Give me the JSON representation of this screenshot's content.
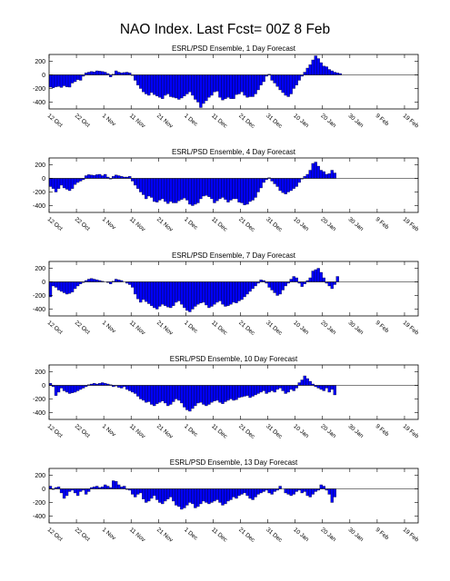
{
  "title": "NAO Index. Last Fcst= 00Z 8 Feb",
  "chart_data": [
    {
      "type": "bar",
      "title": "ESRL/PSD Ensemble, 1 Day Forecast",
      "ylim": [
        -500,
        300
      ],
      "yticks": [
        -400,
        -200,
        0,
        200
      ],
      "xticks": [
        "12 Oct",
        "22 Oct",
        "1 Nov",
        "11 Nov",
        "21 Nov",
        "1 Dec",
        "11 Dec",
        "21 Dec",
        "31 Dec",
        "10 Jan",
        "20 Jan",
        "30 Jan",
        "9 Feb",
        "19 Feb"
      ],
      "bar_color": "#0000ff",
      "values": [
        -180,
        -190,
        -175,
        -170,
        -185,
        -160,
        -175,
        -180,
        -120,
        -100,
        -70,
        -80,
        -20,
        30,
        40,
        50,
        45,
        60,
        55,
        50,
        40,
        20,
        -30,
        10,
        60,
        40,
        30,
        35,
        40,
        30,
        -10,
        -80,
        -150,
        -200,
        -250,
        -280,
        -300,
        -260,
        -290,
        -310,
        -330,
        -350,
        -300,
        -280,
        -320,
        -330,
        -340,
        -360,
        -340,
        -310,
        -280,
        -250,
        -300,
        -360,
        -400,
        -480,
        -420,
        -380,
        -330,
        -300,
        -250,
        -240,
        -330,
        -370,
        -350,
        -330,
        -350,
        -350,
        -290,
        -280,
        -250,
        -300,
        -330,
        -320,
        -320,
        -280,
        -220,
        -150,
        -100,
        -20,
        10,
        -80,
        -120,
        -170,
        -220,
        -260,
        -300,
        -320,
        -280,
        -200,
        -150,
        -80,
        -20,
        40,
        100,
        150,
        220,
        280,
        240,
        180,
        130,
        120,
        80,
        60,
        40,
        30,
        20
      ],
      "zero_line": true
    },
    {
      "type": "bar",
      "title": "ESRL/PSD Ensemble, 4 Day Forecast",
      "ylim": [
        -500,
        300
      ],
      "yticks": [
        -400,
        -200,
        0,
        200
      ],
      "xticks": [
        "12 Oct",
        "22 Oct",
        "1 Nov",
        "11 Nov",
        "21 Nov",
        "1 Dec",
        "11 Dec",
        "21 Dec",
        "31 Dec",
        "10 Jan",
        "20 Jan",
        "30 Jan",
        "9 Feb",
        "19 Feb"
      ],
      "bar_color": "#0000ff",
      "values": [
        -120,
        -150,
        -200,
        -150,
        -100,
        -140,
        -160,
        -180,
        -150,
        -90,
        -60,
        -40,
        -20,
        40,
        55,
        50,
        45,
        55,
        60,
        40,
        60,
        20,
        -10,
        30,
        50,
        40,
        30,
        20,
        20,
        30,
        -40,
        -100,
        -150,
        -200,
        -240,
        -300,
        -260,
        -280,
        -340,
        -350,
        -320,
        -300,
        -340,
        -370,
        -340,
        -360,
        -360,
        -330,
        -310,
        -290,
        -320,
        -380,
        -400,
        -380,
        -360,
        -300,
        -260,
        -250,
        -270,
        -300,
        -360,
        -330,
        -300,
        -280,
        -310,
        -350,
        -320,
        -300,
        -300,
        -350,
        -360,
        -390,
        -380,
        -340,
        -320,
        -280,
        -200,
        -140,
        -60,
        -20,
        10,
        -40,
        -80,
        -120,
        -180,
        -210,
        -230,
        -200,
        -180,
        -150,
        -120,
        -60,
        -10,
        30,
        60,
        120,
        220,
        240,
        180,
        120,
        100,
        60,
        70,
        120,
        80
      ]
    },
    {
      "type": "bar",
      "title": "ESRL/PSD Ensemble, 7 Day Forecast",
      "ylim": [
        -500,
        300
      ],
      "yticks": [
        -400,
        -200,
        0,
        200
      ],
      "xticks": [
        "12 Oct",
        "22 Oct",
        "1 Nov",
        "11 Nov",
        "21 Nov",
        "1 Dec",
        "11 Dec",
        "21 Dec",
        "31 Dec",
        "10 Jan",
        "20 Jan",
        "30 Jan",
        "9 Feb",
        "19 Feb"
      ],
      "bar_color": "#0000ff",
      "values": [
        -220,
        -60,
        -80,
        -120,
        -140,
        -160,
        -180,
        -170,
        -150,
        -100,
        -60,
        -30,
        -10,
        20,
        40,
        50,
        40,
        30,
        20,
        10,
        0,
        -10,
        -30,
        10,
        40,
        30,
        20,
        0,
        -20,
        -40,
        -80,
        -180,
        -250,
        -300,
        -260,
        -290,
        -320,
        -350,
        -380,
        -400,
        -360,
        -330,
        -350,
        -370,
        -380,
        -350,
        -300,
        -280,
        -330,
        -380,
        -420,
        -440,
        -400,
        -360,
        -330,
        -310,
        -300,
        -340,
        -380,
        -360,
        -330,
        -300,
        -280,
        -330,
        -360,
        -350,
        -330,
        -300,
        -310,
        -280,
        -260,
        -220,
        -180,
        -140,
        -100,
        -60,
        -20,
        30,
        20,
        -20,
        -80,
        -120,
        -160,
        -200,
        -180,
        -120,
        -60,
        -20,
        40,
        80,
        60,
        -20,
        -70,
        -30,
        20,
        60,
        160,
        180,
        200,
        140,
        60,
        -20,
        -60,
        -100,
        -40,
        80
      ]
    },
    {
      "type": "bar",
      "title": "ESRL/PSD Ensemble, 10 Day Forecast",
      "ylim": [
        -500,
        300
      ],
      "yticks": [
        -400,
        -200,
        0,
        200
      ],
      "xticks": [
        "12 Oct",
        "22 Oct",
        "1 Nov",
        "11 Nov",
        "21 Nov",
        "1 Dec",
        "11 Dec",
        "21 Dec",
        "31 Dec",
        "10 Jan",
        "20 Jan",
        "30 Jan",
        "9 Feb",
        "19 Feb"
      ],
      "bar_color": "#0000ff",
      "values": [
        30,
        -20,
        -150,
        -100,
        -40,
        -80,
        -100,
        -120,
        -110,
        -100,
        -80,
        -60,
        -40,
        -20,
        10,
        20,
        30,
        20,
        30,
        40,
        30,
        20,
        10,
        -20,
        -10,
        -30,
        -40,
        -20,
        -60,
        -80,
        -100,
        -120,
        -160,
        -200,
        -220,
        -250,
        -240,
        -280,
        -300,
        -270,
        -250,
        -230,
        -260,
        -300,
        -280,
        -240,
        -200,
        -220,
        -260,
        -320,
        -360,
        -380,
        -340,
        -300,
        -260,
        -250,
        -280,
        -300,
        -280,
        -250,
        -230,
        -220,
        -250,
        -270,
        -240,
        -220,
        -200,
        -220,
        -210,
        -180,
        -170,
        -160,
        -150,
        -180,
        -160,
        -140,
        -120,
        -100,
        -80,
        -120,
        -100,
        -80,
        -100,
        -60,
        -40,
        -80,
        -120,
        -100,
        -60,
        -80,
        -40,
        40,
        80,
        140,
        100,
        60,
        20,
        -20,
        -40,
        -60,
        -80,
        -40,
        -100,
        -60,
        -140
      ]
    },
    {
      "type": "bar",
      "title": "ESRL/PSD Ensemble, 13 Day Forecast",
      "ylim": [
        -500,
        300
      ],
      "yticks": [
        -400,
        -200,
        0,
        200
      ],
      "xticks": [
        "12 Oct",
        "22 Oct",
        "1 Nov",
        "11 Nov",
        "21 Nov",
        "1 Dec",
        "11 Dec",
        "21 Dec",
        "31 Dec",
        "10 Jan",
        "20 Jan",
        "30 Jan",
        "9 Feb",
        "19 Feb"
      ],
      "bar_color": "#0000ff",
      "values": [
        40,
        -10,
        20,
        30,
        -60,
        -140,
        -100,
        -40,
        -20,
        -60,
        -100,
        -40,
        -20,
        -80,
        -40,
        20,
        30,
        40,
        20,
        30,
        60,
        40,
        20,
        120,
        110,
        60,
        30,
        40,
        -10,
        -20,
        -80,
        -120,
        -80,
        -60,
        -150,
        -200,
        -180,
        -140,
        -100,
        -160,
        -200,
        -220,
        -180,
        -150,
        -120,
        -180,
        -240,
        -260,
        -300,
        -280,
        -240,
        -200,
        -220,
        -280,
        -260,
        -220,
        -180,
        -200,
        -220,
        -200,
        -180,
        -160,
        -200,
        -240,
        -220,
        -180,
        -160,
        -120,
        -140,
        -100,
        -80,
        -60,
        -100,
        -140,
        -160,
        -120,
        -80,
        -60,
        -40,
        -20,
        -60,
        -80,
        -40,
        -20,
        40,
        0,
        -60,
        -80,
        -100,
        -80,
        -40,
        -20,
        -60,
        -40,
        -100,
        -120,
        -80,
        -40,
        -20,
        60,
        40,
        -20,
        -80,
        -200,
        -120
      ]
    }
  ]
}
